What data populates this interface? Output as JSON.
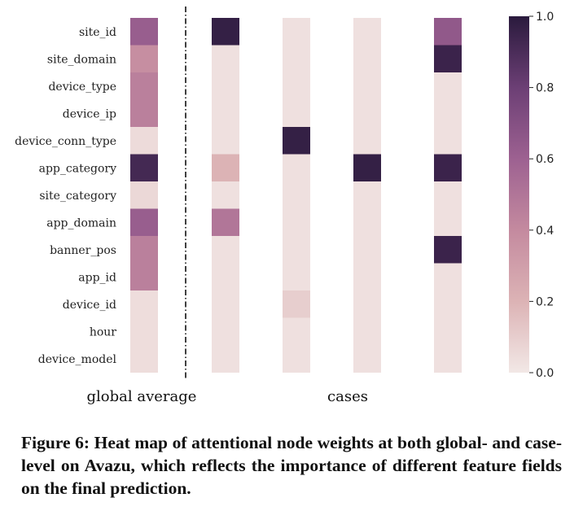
{
  "chart_data": {
    "type": "heatmap",
    "rows": [
      "site_id",
      "site_domain",
      "device_type",
      "device_ip",
      "device_conn_type",
      "app_category",
      "site_category",
      "app_domain",
      "banner_pos",
      "app_id",
      "device_id",
      "hour",
      "device_model"
    ],
    "groups": [
      {
        "label": "global average",
        "columns": [
          [
            0.62,
            0.38,
            0.45,
            0.45,
            0.05,
            0.92,
            0.06,
            0.62,
            0.45,
            0.45,
            0.04,
            0.04,
            0.04
          ]
        ]
      },
      {
        "label": "cases",
        "columns": [
          [
            0.97,
            0.03,
            0.03,
            0.03,
            0.03,
            0.2,
            0.03,
            0.5,
            0.03,
            0.03,
            0.03,
            0.03,
            0.03
          ],
          [
            0.03,
            0.03,
            0.03,
            0.03,
            0.97,
            0.03,
            0.03,
            0.03,
            0.03,
            0.03,
            0.1,
            0.03,
            0.03
          ],
          [
            0.03,
            0.03,
            0.03,
            0.03,
            0.03,
            0.97,
            0.03,
            0.03,
            0.03,
            0.03,
            0.03,
            0.03,
            0.03
          ],
          [
            0.65,
            0.95,
            0.03,
            0.03,
            0.03,
            0.95,
            0.03,
            0.03,
            0.95,
            0.03,
            0.03,
            0.03,
            0.03
          ]
        ]
      }
    ],
    "colorbar": {
      "min": 0.0,
      "max": 1.0,
      "ticks": [
        "0.0",
        "0.2",
        "0.4",
        "0.6",
        "0.8",
        "1.0"
      ]
    },
    "colormap": [
      "#f2e8e6",
      "#dcb3b5",
      "#c48a9f",
      "#9d6191",
      "#6c3f75",
      "#2a1a3d"
    ],
    "separator": "dash-dot vertical line between global average and cases"
  },
  "caption": "Figure 6: Heat map of attentional node weights at both global- and case-level on Avazu, which reflects the importance of different feature fields on the final prediction."
}
